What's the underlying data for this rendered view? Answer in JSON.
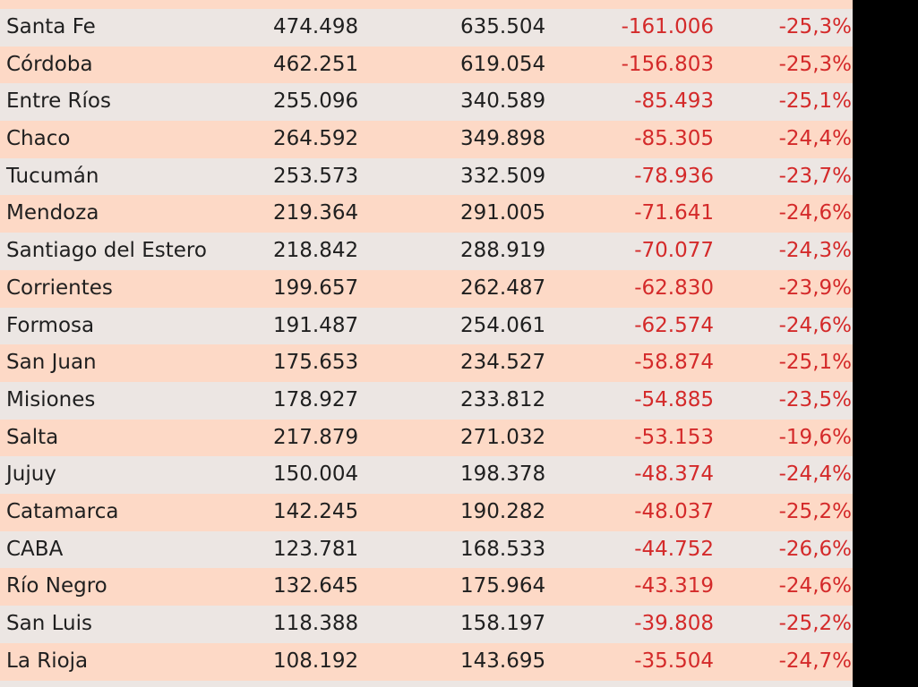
{
  "table": {
    "rows": [
      {
        "name": "Santa Fe",
        "v1": "474.498",
        "v2": "635.504",
        "diff": "-161.006",
        "pct": "-25,3%"
      },
      {
        "name": "Córdoba",
        "v1": "462.251",
        "v2": "619.054",
        "diff": "-156.803",
        "pct": "-25,3%"
      },
      {
        "name": "Entre Ríos",
        "v1": "255.096",
        "v2": "340.589",
        "diff": "-85.493",
        "pct": "-25,1%"
      },
      {
        "name": "Chaco",
        "v1": "264.592",
        "v2": "349.898",
        "diff": "-85.305",
        "pct": "-24,4%"
      },
      {
        "name": "Tucumán",
        "v1": "253.573",
        "v2": "332.509",
        "diff": "-78.936",
        "pct": "-23,7%"
      },
      {
        "name": "Mendoza",
        "v1": "219.364",
        "v2": "291.005",
        "diff": "-71.641",
        "pct": "-24,6%"
      },
      {
        "name": "Santiago del Estero",
        "v1": "218.842",
        "v2": "288.919",
        "diff": "-70.077",
        "pct": "-24,3%"
      },
      {
        "name": "Corrientes",
        "v1": "199.657",
        "v2": "262.487",
        "diff": "-62.830",
        "pct": "-23,9%"
      },
      {
        "name": "Formosa",
        "v1": "191.487",
        "v2": "254.061",
        "diff": "-62.574",
        "pct": "-24,6%"
      },
      {
        "name": "San Juan",
        "v1": "175.653",
        "v2": "234.527",
        "diff": "-58.874",
        "pct": "-25,1%"
      },
      {
        "name": "Misiones",
        "v1": "178.927",
        "v2": "233.812",
        "diff": "-54.885",
        "pct": "-23,5%"
      },
      {
        "name": "Salta",
        "v1": "217.879",
        "v2": "271.032",
        "diff": "-53.153",
        "pct": "-19,6%"
      },
      {
        "name": "Jujuy",
        "v1": "150.004",
        "v2": "198.378",
        "diff": "-48.374",
        "pct": "-24,4%"
      },
      {
        "name": "Catamarca",
        "v1": "142.245",
        "v2": "190.282",
        "diff": "-48.037",
        "pct": "-25,2%"
      },
      {
        "name": "CABA",
        "v1": "123.781",
        "v2": "168.533",
        "diff": "-44.752",
        "pct": "-26,6%"
      },
      {
        "name": "Río Negro",
        "v1": "132.645",
        "v2": "175.964",
        "diff": "-43.319",
        "pct": "-24,6%"
      },
      {
        "name": "San Luis",
        "v1": "118.388",
        "v2": "158.197",
        "diff": "-39.808",
        "pct": "-25,2%"
      },
      {
        "name": "La Rioja",
        "v1": "108.192",
        "v2": "143.695",
        "diff": "-35.504",
        "pct": "-24,7%"
      }
    ]
  },
  "colors": {
    "row_even": "#ece6e3",
    "row_odd": "#fdd9c6",
    "negative_text": "#d42a2a",
    "text": "#1f1f1f"
  }
}
